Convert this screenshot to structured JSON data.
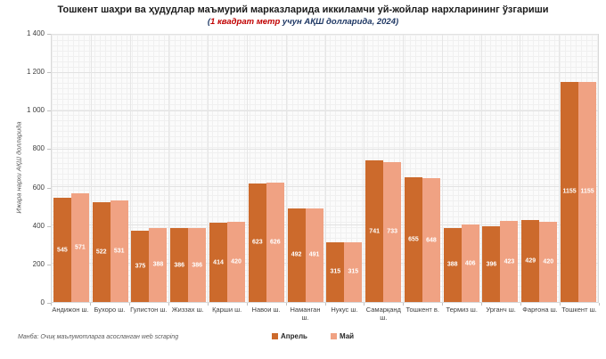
{
  "header": {
    "title": "Тошкент шаҳри ва ҳудудлар маъмурий марказларида иккиламчи уй-жойлар нархларининг ўзгариши",
    "subtitle_prefix": "(",
    "subtitle_highlight": "1 квадрат метр",
    "subtitle_rest": " учун АҚШ долларида, 2024)"
  },
  "footer": {
    "source": "Манба: Очиқ маълумотларга асосланган web scraping"
  },
  "colors": {
    "april": "#cc6a2c",
    "may": "#f0a283",
    "subtitle_highlight": "#c00000",
    "subtitle_rest": "#1f3864"
  },
  "chart_data": {
    "type": "bar",
    "title": "Тошкент шаҳри ва ҳудудлар маъмурий марказларида иккиламчи уй-жойлар нархларининг ўзгариши",
    "subtitle": "(1 квадрат метр учун АҚШ долларида, 2024)",
    "xlabel": "",
    "ylabel": "Ижара нархи АҚШ долларида",
    "ylim": [
      0,
      1400
    ],
    "ytick_step": 200,
    "grid": true,
    "legend_position": "bottom",
    "categories": [
      "Андижон ш.",
      "Бухоро ш.",
      "Гулистон ш.",
      "Жиззах ш.",
      "Қарши ш.",
      "Навои ш.",
      "Наманган ш.",
      "Нукус ш.",
      "Самарқанд ш.",
      "Тошкент в.",
      "Термиз ш.",
      "Урганч ш.",
      "Фарғона ш.",
      "Тошкент ш."
    ],
    "series": [
      {
        "name": "Апрель",
        "color": "#cc6a2c",
        "values": [
          545,
          522,
          375,
          386,
          414,
          623,
          492,
          315,
          741,
          655,
          388,
          396,
          429,
          1155
        ]
      },
      {
        "name": "Май",
        "color": "#f0a283",
        "values": [
          571,
          531,
          388,
          386,
          420,
          626,
          491,
          315,
          733,
          648,
          406,
          423,
          420,
          1155
        ]
      }
    ]
  }
}
